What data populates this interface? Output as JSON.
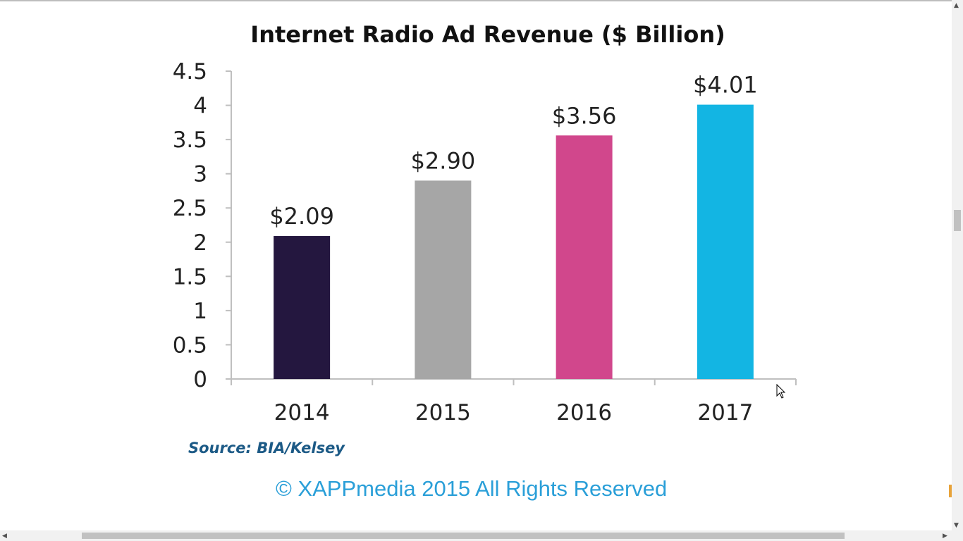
{
  "chart_data": {
    "type": "bar",
    "title": "Internet Radio Ad Revenue ($ Billion)",
    "categories": [
      "2014",
      "2015",
      "2016",
      "2017"
    ],
    "values": [
      2.09,
      2.9,
      3.56,
      4.01
    ],
    "data_labels": [
      "$2.09",
      "$2.90",
      "$3.56",
      "$4.01"
    ],
    "colors": [
      "#24173f",
      "#a6a6a6",
      "#d1478c",
      "#13b5e3"
    ],
    "ylim": [
      0,
      4.5
    ],
    "yticks": [
      0,
      0.5,
      1,
      1.5,
      2,
      2.5,
      3,
      3.5,
      4,
      4.5
    ],
    "ytick_labels": [
      "0",
      "0.5",
      "1",
      "1.5",
      "2",
      "2.5",
      "3",
      "3.5",
      "4",
      "4.5"
    ],
    "xlabel": "",
    "ylabel": "",
    "grid": false,
    "legend": "none"
  },
  "source_text": "Source: BIA/Kelsey",
  "copyright_text": "© XAPPmedia 2015 All Rights Reserved",
  "colors": {
    "source": "#1c5a86",
    "copyright": "#2a9fd8",
    "axis": "#bfbfbf"
  },
  "scrollbars": {
    "up_arrow_icon": "▲",
    "down_arrow_icon": "▼",
    "left_arrow_icon": "◀",
    "right_arrow_icon": "▶"
  }
}
